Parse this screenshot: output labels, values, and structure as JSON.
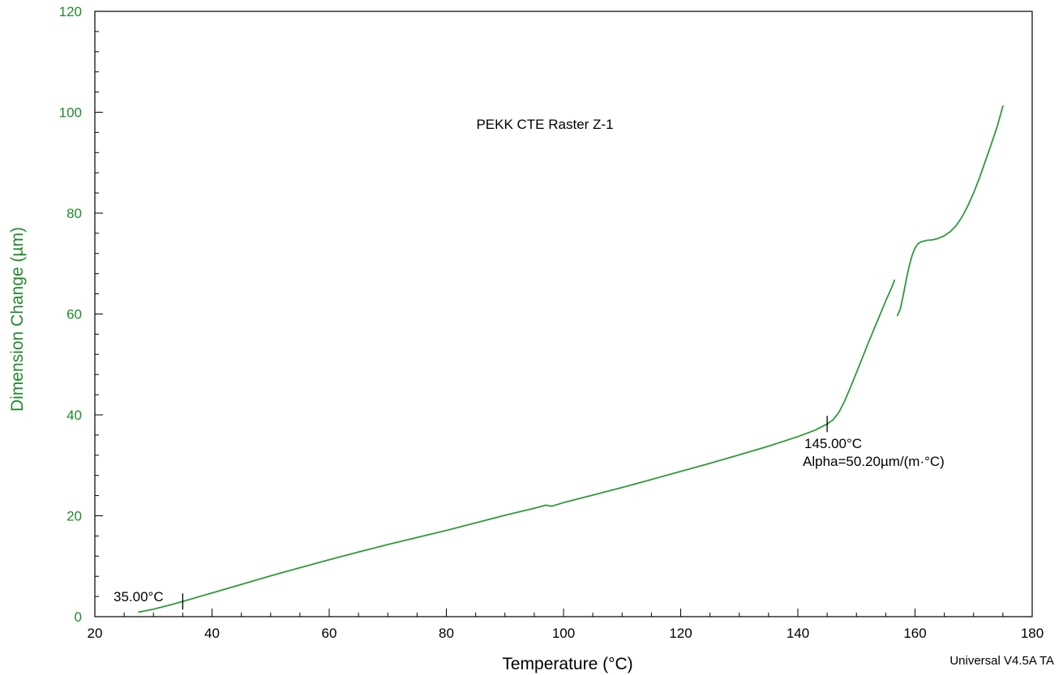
{
  "chart_data": {
    "type": "line",
    "title": "PEKK CTE Raster Z-1",
    "xlabel": "Temperature (°C)",
    "ylabel": "Dimension Change (µm)",
    "xlim": [
      20,
      180
    ],
    "ylim": [
      0,
      120
    ],
    "xticks": [
      20,
      40,
      60,
      80,
      100,
      120,
      140,
      160,
      180
    ],
    "yticks": [
      0,
      20,
      40,
      60,
      80,
      100,
      120
    ],
    "xtick_labels": [
      "20",
      "40",
      "60",
      "80",
      "100",
      "120",
      "140",
      "160",
      "180"
    ],
    "ytick_labels": [
      "0",
      "20",
      "40",
      "60",
      "80",
      "100",
      "120"
    ],
    "grid": false,
    "series": [
      {
        "color": "#2e9a3a",
        "segments": [
          [
            [
              27.5,
              0.9
            ],
            [
              30,
              1.5
            ],
            [
              32.5,
              2.2
            ],
            [
              35,
              3.0
            ],
            [
              40,
              4.7
            ],
            [
              45,
              6.4
            ],
            [
              50,
              8.1
            ],
            [
              55,
              9.7
            ],
            [
              60,
              11.3
            ],
            [
              65,
              12.8
            ],
            [
              70,
              14.3
            ],
            [
              75,
              15.7
            ],
            [
              80,
              17.1
            ],
            [
              85,
              18.6
            ],
            [
              90,
              20.1
            ],
            [
              95,
              21.5
            ],
            [
              97,
              22.1
            ],
            [
              98,
              21.9
            ],
            [
              100,
              22.6
            ],
            [
              105,
              24.1
            ],
            [
              110,
              25.6
            ],
            [
              115,
              27.2
            ],
            [
              120,
              28.8
            ],
            [
              125,
              30.4
            ],
            [
              130,
              32.1
            ],
            [
              135,
              33.8
            ],
            [
              140,
              35.7
            ],
            [
              143,
              37.0
            ],
            [
              145,
              38.2
            ],
            [
              146,
              39.0
            ],
            [
              147,
              40.5
            ],
            [
              148,
              42.8
            ],
            [
              149,
              45.5
            ],
            [
              150,
              48.4
            ],
            [
              151,
              51.3
            ],
            [
              152,
              54.2
            ],
            [
              153,
              57.0
            ],
            [
              154,
              59.8
            ],
            [
              155,
              62.6
            ],
            [
              156,
              65.2
            ],
            [
              156.5,
              66.7
            ]
          ],
          [
            [
              157,
              59.7
            ],
            [
              157.5,
              61.0
            ],
            [
              158,
              63.8
            ],
            [
              158.5,
              66.8
            ],
            [
              159,
              69.5
            ],
            [
              159.5,
              71.6
            ],
            [
              160,
              73.1
            ],
            [
              160.5,
              73.9
            ],
            [
              161,
              74.3
            ],
            [
              162,
              74.6
            ],
            [
              163,
              74.7
            ],
            [
              164,
              75.0
            ],
            [
              165,
              75.5
            ],
            [
              166,
              76.3
            ],
            [
              167,
              77.5
            ],
            [
              168,
              79.2
            ],
            [
              169,
              81.4
            ],
            [
              170,
              84.0
            ],
            [
              171,
              87.0
            ],
            [
              172,
              90.3
            ],
            [
              173,
              93.6
            ],
            [
              174,
              97.1
            ],
            [
              175,
              101.2
            ]
          ]
        ]
      }
    ],
    "markers": [
      {
        "x": 35.0,
        "y": 3.0
      },
      {
        "x": 145.0,
        "y": 38.2
      }
    ],
    "annotations": {
      "start_temp": "35.00°C",
      "end_temp": "145.00°C",
      "alpha": "Alpha=50.20µm/(m·°C)"
    },
    "footer": "Universal V4.5A TA",
    "colors": {
      "axis": "#000000",
      "y_axis_text": "#1f8a2b",
      "series": "#2e9a3a"
    }
  }
}
